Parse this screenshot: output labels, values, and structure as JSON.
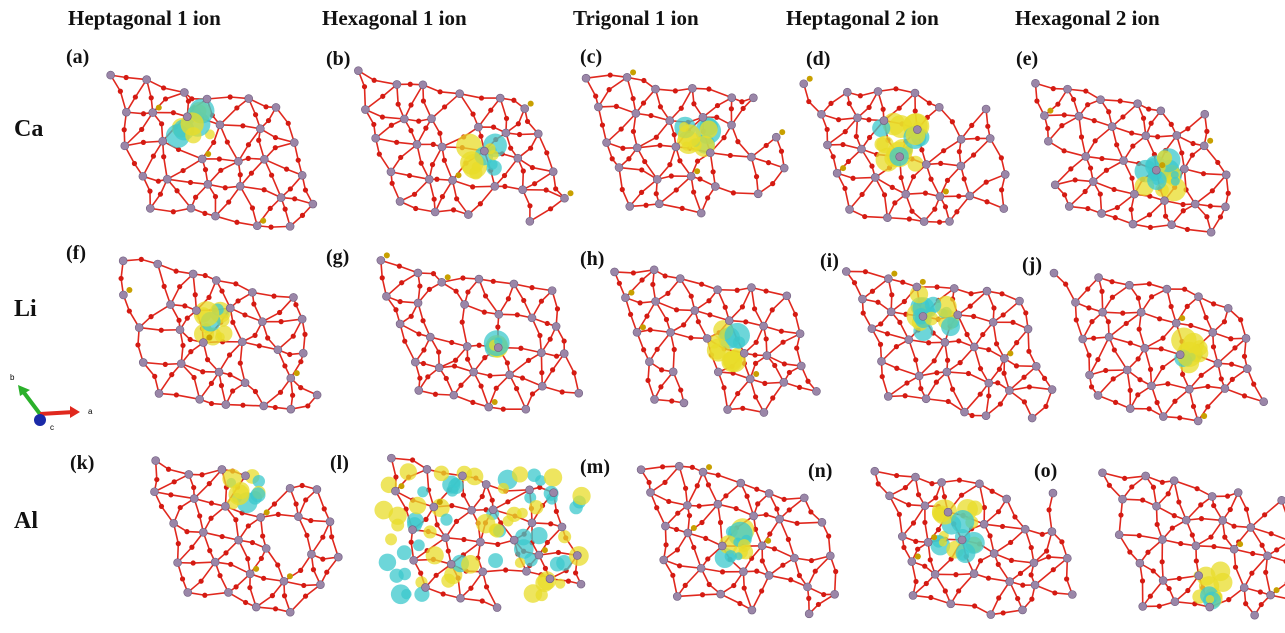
{
  "columns": [
    {
      "label": "Heptagonal 1 ion"
    },
    {
      "label": "Hexagonal 1 ion"
    },
    {
      "label": "Trigonal 1 ion"
    },
    {
      "label": "Heptagonal 2 ion"
    },
    {
      "label": "Hexagonal 2 ion"
    }
  ],
  "rows": [
    {
      "label": "Ca",
      "panels": [
        "(a)",
        "(b)",
        "(c)",
        "(d)",
        "(e)"
      ]
    },
    {
      "label": "Li",
      "panels": [
        "(f)",
        "(g)",
        "(h)",
        "(i)",
        "(j)"
      ]
    },
    {
      "label": "Al",
      "panels": [
        "(k)",
        "(l)",
        "(m)",
        "(n)",
        "(o)"
      ]
    }
  ],
  "axes_indicator": {
    "b": "b",
    "a": "a",
    "c": "c"
  },
  "colors": {
    "bond": "#e0281e",
    "oxygen": "#d41a12",
    "silicon": "#9a86a8",
    "ion": "#c8a000",
    "isosurface_yellow": "#e8dc2a",
    "isosurface_cyan": "#3cc8cc",
    "axis_a": "#e0281e",
    "axis_b": "#2ab02a",
    "axis_c": "#1a2aa8"
  }
}
